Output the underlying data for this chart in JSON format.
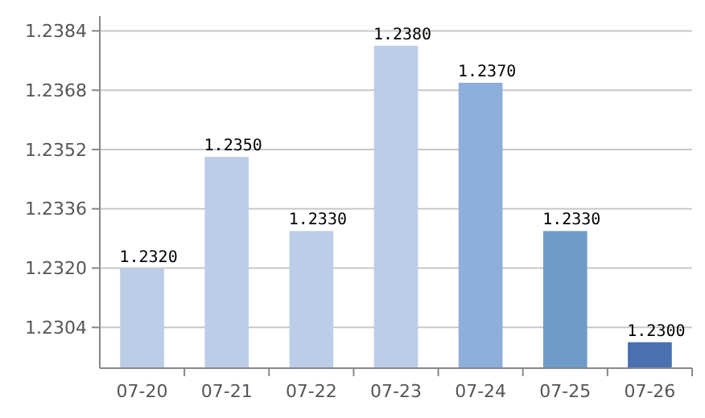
{
  "chart_data": {
    "type": "bar",
    "categories": [
      "07-20",
      "07-21",
      "07-22",
      "07-23",
      "07-24",
      "07-25",
      "07-26"
    ],
    "values": [
      1.232,
      1.235,
      1.233,
      1.238,
      1.237,
      1.233,
      1.23
    ],
    "colors": [
      "#bccde8",
      "#bccde8",
      "#bccde8",
      "#bccde8",
      "#8eaedb",
      "#6f9bc8",
      "#4a70b0"
    ],
    "value_labels": [
      "1.2320",
      "1.2350",
      "1.2330",
      "1.2380",
      "1.2370",
      "1.2330",
      "1.2300"
    ],
    "ylim": [
      1.2293,
      1.2388
    ],
    "yticks": [
      1.2304,
      {
        "value": 1.232,
        "label": "1.2320"
      },
      1.2336,
      1.2352,
      1.2368,
      1.2384
    ],
    "grid": "y"
  }
}
